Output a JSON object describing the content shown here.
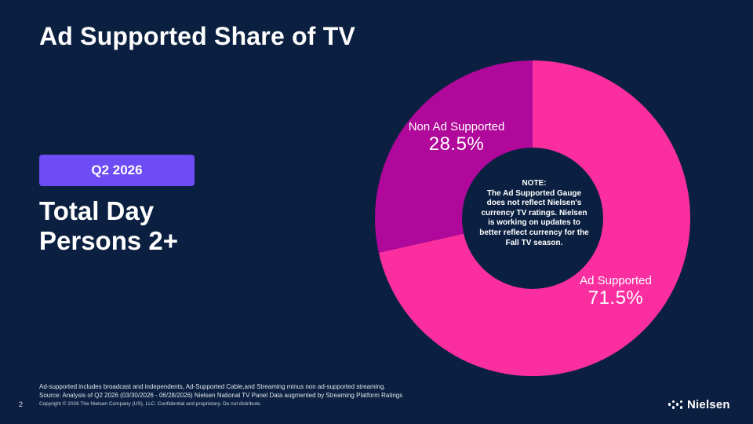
{
  "slide": {
    "title": "Ad Supported Share of TV",
    "period": "Q2 2026",
    "segment_lines": [
      "Total Day",
      "Persons 2+"
    ],
    "note_lines": [
      "NOTE:",
      "The Ad Supported Gauge",
      "does not reflect Nielsen's",
      "currency TV ratings. Nielsen",
      "is working on updates to",
      "better reflect currency for the",
      "Fall TV season."
    ],
    "footnote_lines": [
      "Ad-supported includes broadcast and independents, Ad-Supported Cable,and Streaming minus non ad-supported streaming.",
      "Source: Analysis of Q2 2026 (03/30/2026 - 06/28/2026) Nielsen National TV Panel Data augmented by Streaming Platform Ratings"
    ],
    "page_number": "2",
    "copyright": "Copyright © 2026 The Nielsen Company (US), LLC. Confidential and proprietary. Do not distribute.",
    "brand": "Nielsen",
    "background_color": "#0b2040",
    "badge_color": "#6d4cf5"
  },
  "chart_data": {
    "type": "pie",
    "donut": true,
    "categories": [
      "Ad Supported",
      "Non Ad Supported"
    ],
    "values": [
      71.5,
      28.5
    ],
    "value_labels": [
      "71.5%",
      "28.5%"
    ],
    "colors": [
      "#fb2ea0",
      "#b0089a"
    ],
    "start": "top, clockwise"
  }
}
